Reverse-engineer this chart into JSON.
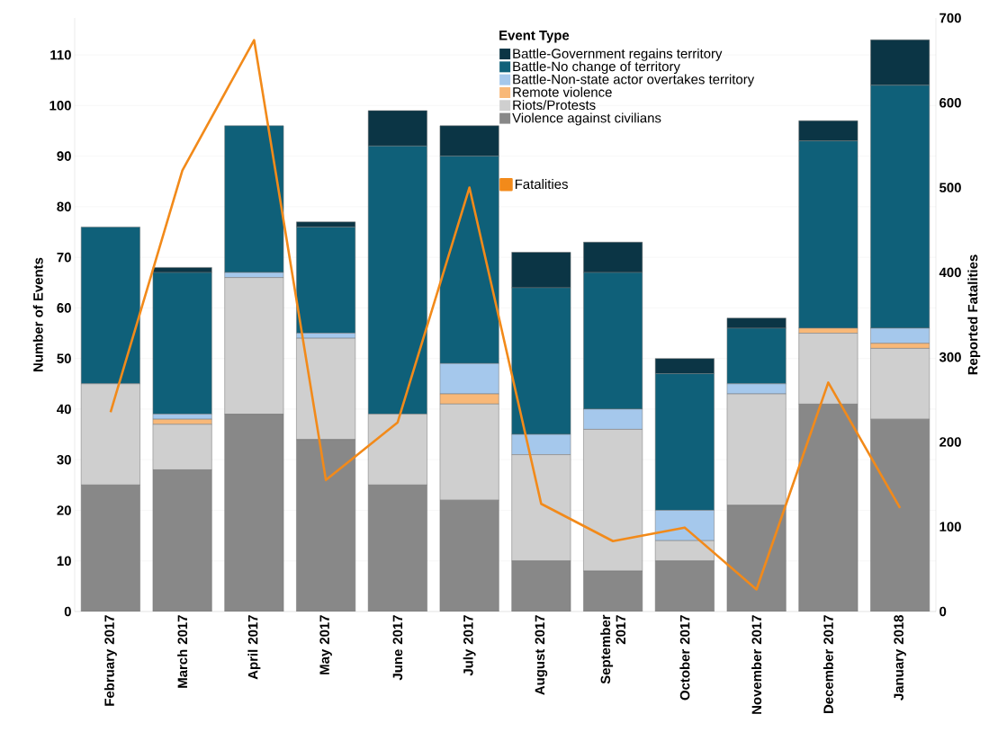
{
  "chart_data": {
    "type": "bar",
    "stacked": true,
    "ylabel": "Number of Events",
    "y2label": "Reported Fatalities",
    "legend_title": "Event Type",
    "categories": [
      "February 2017",
      "March 2017",
      "April 2017",
      "May 2017",
      "June 2017",
      "July 2017",
      "August 2017",
      "September 2017",
      "October 2017",
      "November 2017",
      "December 2017",
      "January 2018"
    ],
    "series": [
      {
        "name": "Violence against civilians",
        "color": "#888888",
        "values": [
          25,
          28,
          39,
          34,
          25,
          22,
          10,
          8,
          10,
          21,
          41,
          38
        ]
      },
      {
        "name": "Riots/Protests",
        "color": "#cfcfcf",
        "values": [
          20,
          9,
          27,
          20,
          14,
          19,
          21,
          28,
          4,
          22,
          14,
          14
        ]
      },
      {
        "name": "Remote violence",
        "color": "#f8b878",
        "values": [
          0,
          1,
          0,
          0,
          0,
          2,
          0,
          0,
          0,
          0,
          1,
          1
        ]
      },
      {
        "name": "Battle-Non-state actor overtakes territory",
        "color": "#a5c8ec",
        "values": [
          0,
          1,
          1,
          1,
          0,
          6,
          4,
          4,
          6,
          2,
          0,
          3
        ]
      },
      {
        "name": "Battle-No change of territory",
        "color": "#0f6079",
        "values": [
          31,
          28,
          29,
          21,
          53,
          41,
          29,
          27,
          27,
          11,
          37,
          48
        ]
      },
      {
        "name": "Battle-Government regains territory",
        "color": "#0b3545",
        "values": [
          0,
          1,
          0,
          1,
          7,
          6,
          7,
          6,
          3,
          2,
          4,
          9
        ]
      },
      {
        "name": "Fatalities",
        "type": "line",
        "axis": "y2",
        "color": "#f28a1a",
        "values": [
          235,
          520,
          674,
          155,
          223,
          500,
          127,
          83,
          99,
          26,
          270,
          122
        ]
      }
    ],
    "ylim": [
      0,
      117.3
    ],
    "yticks": [
      0,
      10,
      20,
      30,
      40,
      50,
      60,
      70,
      80,
      90,
      100,
      110
    ],
    "y2lim": [
      0,
      700
    ],
    "y2ticks": [
      0,
      100,
      200,
      300,
      400,
      500,
      600,
      700
    ],
    "grid": "y",
    "legend": "top"
  }
}
